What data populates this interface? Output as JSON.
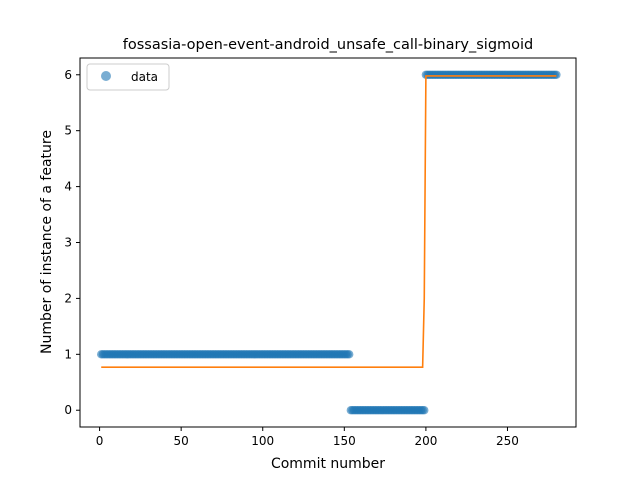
{
  "chart_data": {
    "type": "scatter",
    "title": "fossasia-open-event-android_unsafe_call-binary_sigmoid",
    "xlabel": "Commit number",
    "ylabel": "Number of instance of a feature",
    "xlim": [
      -12,
      292
    ],
    "ylim": [
      -0.3,
      6.3
    ],
    "xticks": [
      0,
      50,
      100,
      150,
      200,
      250
    ],
    "yticks": [
      0,
      1,
      2,
      3,
      4,
      5,
      6
    ],
    "grid": false,
    "legend": {
      "position": "top-left",
      "entries": [
        "data"
      ]
    },
    "series": [
      {
        "name": "data",
        "kind": "scatter",
        "color": "#1f77b4",
        "alpha": 0.6,
        "segments": [
          {
            "x_start": 1,
            "x_end": 153,
            "y": 1
          },
          {
            "x_start": 154,
            "x_end": 199,
            "y": 0
          },
          {
            "x_start": 200,
            "x_end": 280,
            "y": 6
          }
        ]
      },
      {
        "kind": "line",
        "color": "#ff7f0e",
        "points": [
          [
            1,
            0.77
          ],
          [
            198,
            0.77
          ],
          [
            199,
            2.0
          ],
          [
            200,
            5.98
          ],
          [
            280,
            5.98
          ]
        ]
      }
    ]
  }
}
